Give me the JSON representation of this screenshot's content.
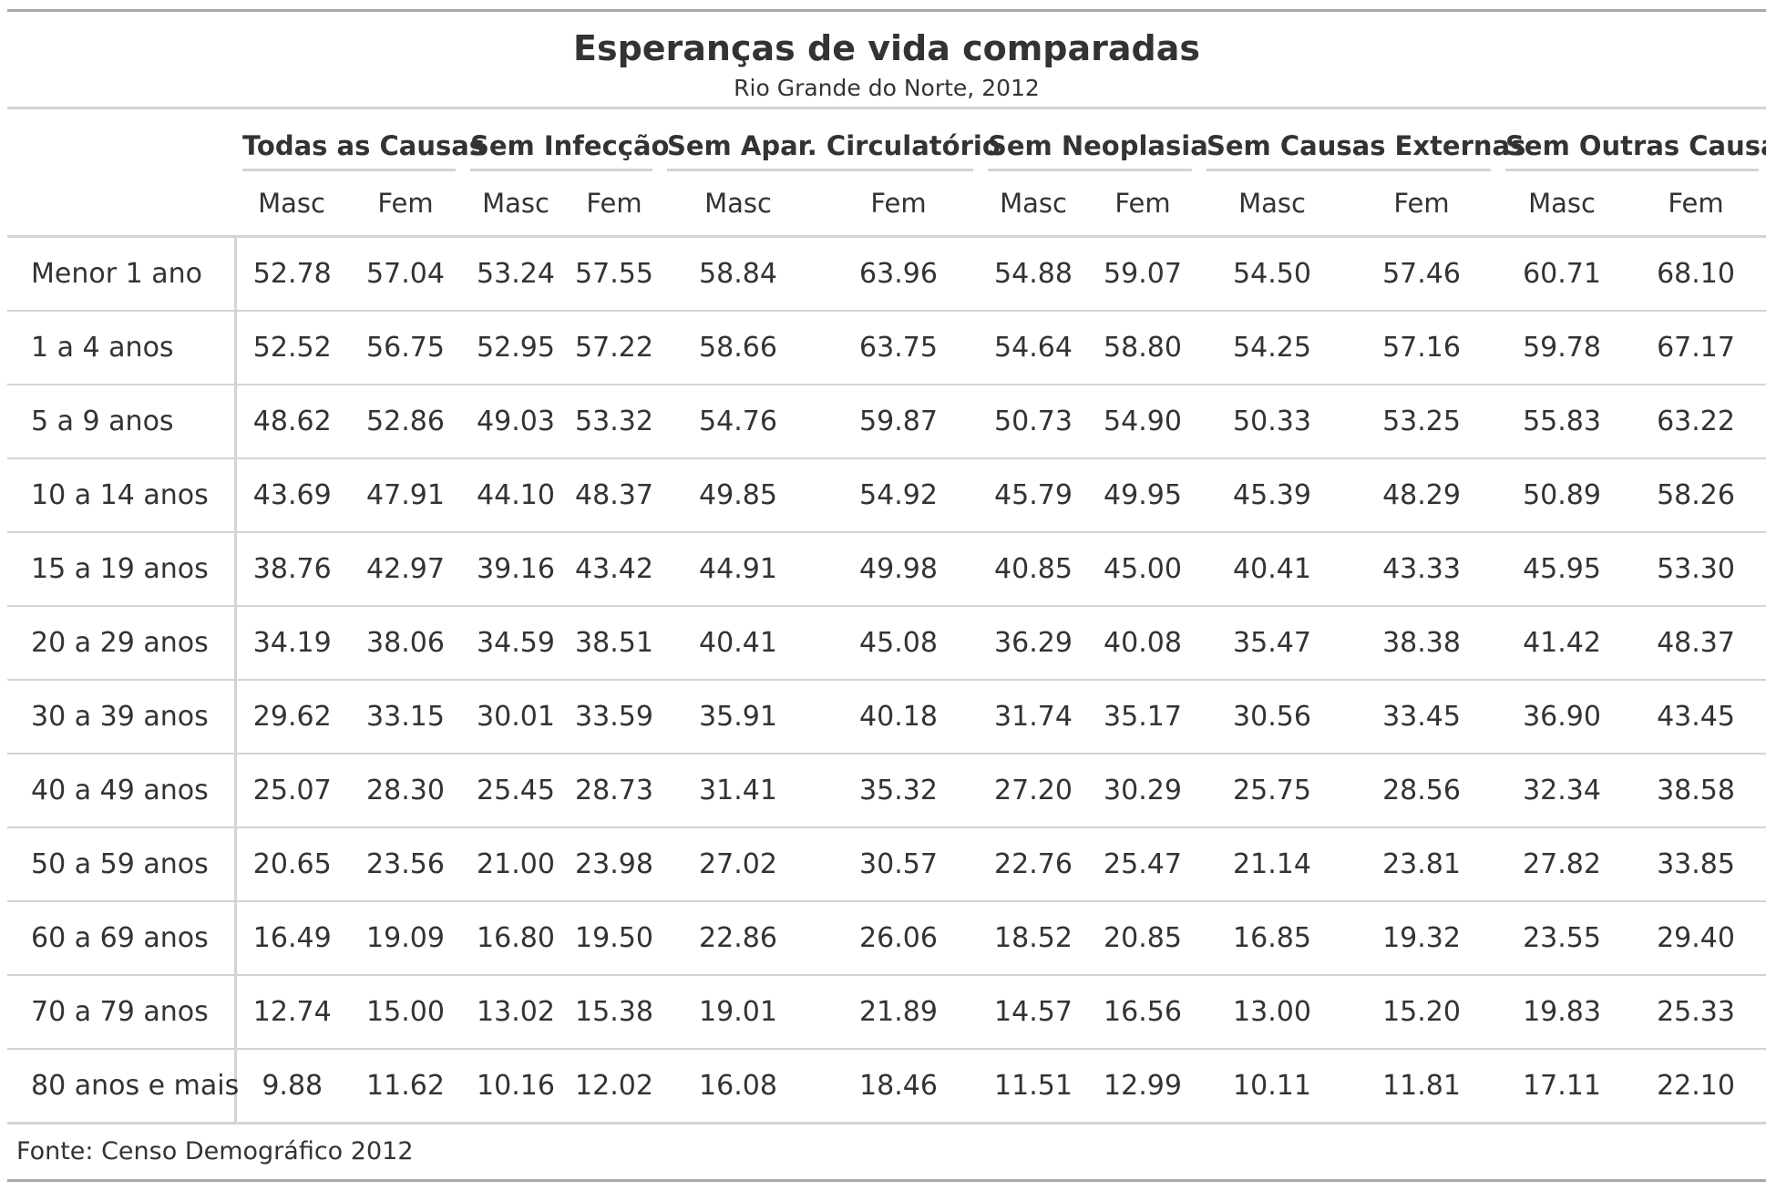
{
  "table": {
    "title": "Esperanças de vida comparadas",
    "subtitle": "Rio Grande do Norte, 2012",
    "spanners": [
      "Todas as Causas",
      "Sem Infecção",
      "Sem Apar. Circulatório",
      "Sem Neoplasia",
      "Sem Causas Externas",
      "Sem Outras Causas"
    ],
    "sub_columns": [
      "Masc",
      "Fem",
      "Masc",
      "Fem",
      "Masc",
      "Fem",
      "Masc",
      "Fem",
      "Masc",
      "Fem",
      "Masc",
      "Fem"
    ],
    "rows": [
      {
        "label": "Menor 1 ano",
        "values": [
          "52.78",
          "57.04",
          "53.24",
          "57.55",
          "58.84",
          "63.96",
          "54.88",
          "59.07",
          "54.50",
          "57.46",
          "60.71",
          "68.10"
        ]
      },
      {
        "label": "1 a 4 anos",
        "values": [
          "52.52",
          "56.75",
          "52.95",
          "57.22",
          "58.66",
          "63.75",
          "54.64",
          "58.80",
          "54.25",
          "57.16",
          "59.78",
          "67.17"
        ]
      },
      {
        "label": "5 a 9 anos",
        "values": [
          "48.62",
          "52.86",
          "49.03",
          "53.32",
          "54.76",
          "59.87",
          "50.73",
          "54.90",
          "50.33",
          "53.25",
          "55.83",
          "63.22"
        ]
      },
      {
        "label": "10 a 14 anos",
        "values": [
          "43.69",
          "47.91",
          "44.10",
          "48.37",
          "49.85",
          "54.92",
          "45.79",
          "49.95",
          "45.39",
          "48.29",
          "50.89",
          "58.26"
        ]
      },
      {
        "label": "15 a 19 anos",
        "values": [
          "38.76",
          "42.97",
          "39.16",
          "43.42",
          "44.91",
          "49.98",
          "40.85",
          "45.00",
          "40.41",
          "43.33",
          "45.95",
          "53.30"
        ]
      },
      {
        "label": "20 a 29 anos",
        "values": [
          "34.19",
          "38.06",
          "34.59",
          "38.51",
          "40.41",
          "45.08",
          "36.29",
          "40.08",
          "35.47",
          "38.38",
          "41.42",
          "48.37"
        ]
      },
      {
        "label": "30 a 39 anos",
        "values": [
          "29.62",
          "33.15",
          "30.01",
          "33.59",
          "35.91",
          "40.18",
          "31.74",
          "35.17",
          "30.56",
          "33.45",
          "36.90",
          "43.45"
        ]
      },
      {
        "label": "40 a 49 anos",
        "values": [
          "25.07",
          "28.30",
          "25.45",
          "28.73",
          "31.41",
          "35.32",
          "27.20",
          "30.29",
          "25.75",
          "28.56",
          "32.34",
          "38.58"
        ]
      },
      {
        "label": "50 a 59 anos",
        "values": [
          "20.65",
          "23.56",
          "21.00",
          "23.98",
          "27.02",
          "30.57",
          "22.76",
          "25.47",
          "21.14",
          "23.81",
          "27.82",
          "33.85"
        ]
      },
      {
        "label": "60 a 69 anos",
        "values": [
          "16.49",
          "19.09",
          "16.80",
          "19.50",
          "22.86",
          "26.06",
          "18.52",
          "20.85",
          "16.85",
          "19.32",
          "23.55",
          "29.40"
        ]
      },
      {
        "label": "70 a 79 anos",
        "values": [
          "12.74",
          "15.00",
          "13.02",
          "15.38",
          "19.01",
          "21.89",
          "14.57",
          "16.56",
          "13.00",
          "15.20",
          "19.83",
          "25.33"
        ]
      },
      {
        "label": "80 anos e mais",
        "values": [
          "9.88",
          "11.62",
          "10.16",
          "12.02",
          "16.08",
          "18.46",
          "11.51",
          "12.99",
          "10.11",
          "11.81",
          "17.11",
          "22.10"
        ]
      }
    ],
    "source_note": "Fonte: Censo Demográfico 2012"
  },
  "colors": {
    "text": "#333333",
    "outer_rule": "#a8a8a8",
    "inner_rule": "#d3d3d3"
  }
}
